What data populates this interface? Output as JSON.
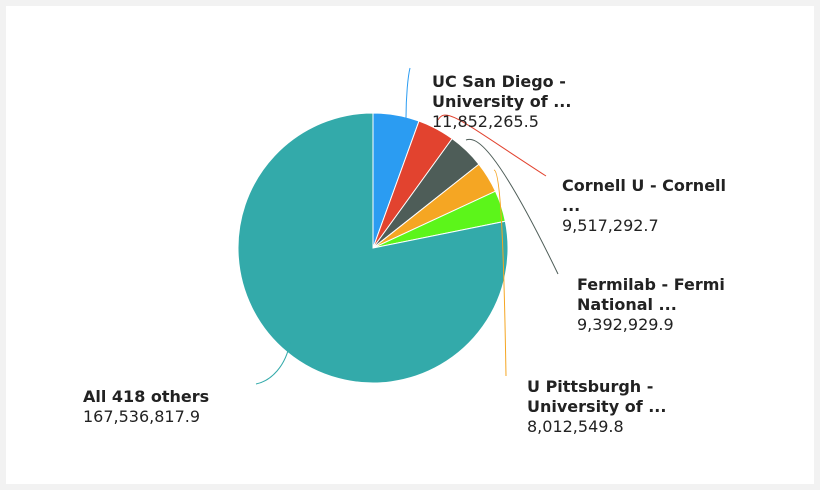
{
  "chart_data": {
    "type": "pie",
    "categories": [
      "UC San Diego - University of ...",
      "Cornell U - Cornell ...",
      "Fermilab - Fermi National ...",
      "U Pittsburgh - University of ...",
      null,
      "All 418 others"
    ],
    "values": [
      11852265.5,
      9517292.7,
      9392929.9,
      8012549.8,
      8000000,
      167536817.9
    ],
    "value_labels": [
      "11,852,265.5",
      "9,517,292.7",
      "9,392,929.9",
      "8,012,549.8",
      null,
      "167,536,817.9"
    ],
    "colors": [
      "#2b9cf2",
      "#e2432f",
      "#4e5d58",
      "#f5a623",
      "#5cf51a",
      "#33aaaa"
    ]
  }
}
